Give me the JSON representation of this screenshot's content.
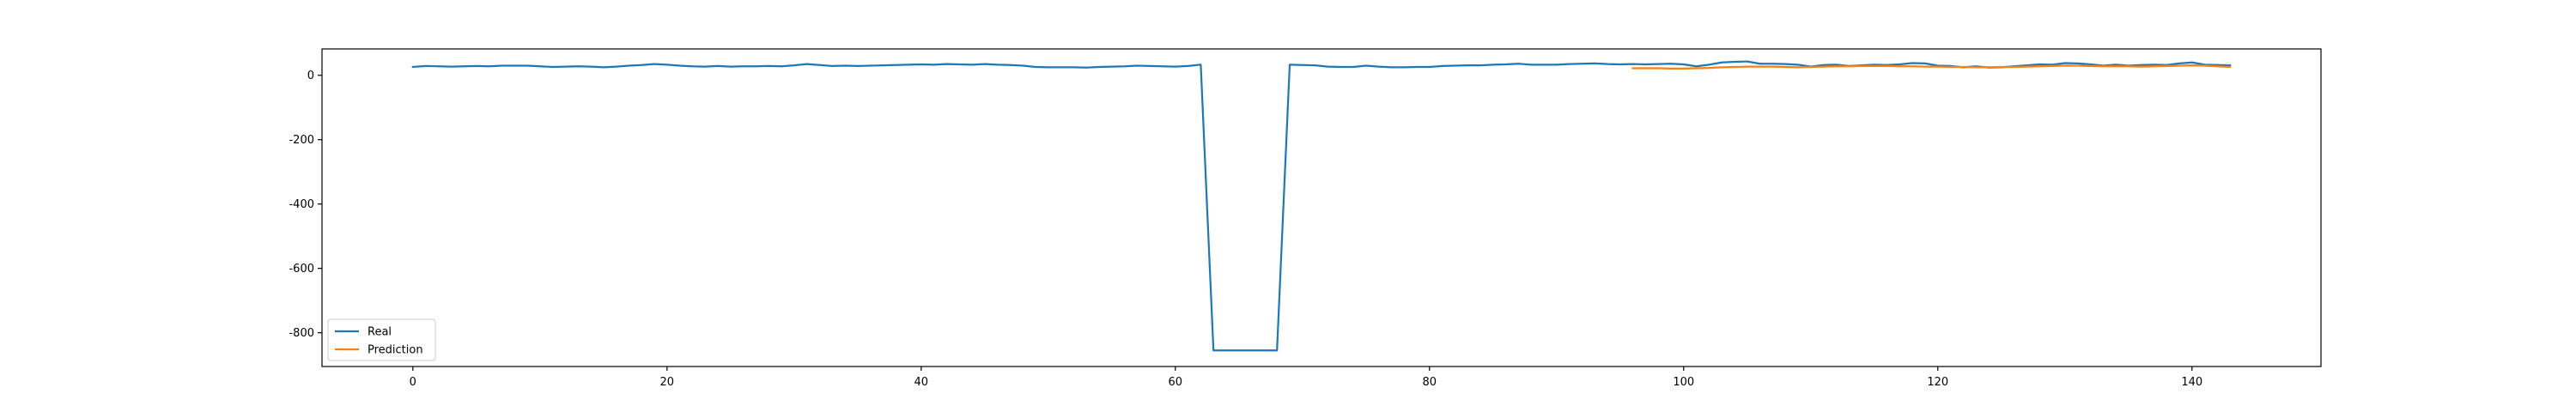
{
  "chart_data": {
    "type": "line",
    "title": "",
    "xlabel": "",
    "ylabel": "",
    "xlim": [
      -7.15,
      150.15
    ],
    "ylim": [
      -905,
      82
    ],
    "xticks": [
      0,
      20,
      40,
      60,
      80,
      100,
      120,
      140
    ],
    "yticks": [
      0,
      -200,
      -400,
      -600,
      -800
    ],
    "grid": false,
    "legend_position": "lower-left",
    "series": [
      {
        "name": "Real",
        "color": "#1f77b4",
        "x_start": 0,
        "values": [
          26,
          29,
          28,
          27,
          28,
          29,
          28,
          30,
          30,
          30,
          28,
          26,
          27,
          28,
          27,
          25,
          27,
          30,
          32,
          35,
          33,
          30,
          28,
          27,
          29,
          27,
          28,
          28,
          29,
          28,
          31,
          35,
          32,
          29,
          30,
          29,
          30,
          31,
          32,
          33,
          34,
          33,
          35,
          34,
          33,
          35,
          33,
          32,
          30,
          26,
          25,
          25,
          25,
          24,
          26,
          27,
          28,
          30,
          29,
          28,
          27,
          29,
          33,
          -855,
          -855,
          -855,
          -855,
          -855,
          -855,
          33,
          32,
          31,
          27,
          26,
          26,
          30,
          27,
          25,
          25,
          26,
          26,
          29,
          30,
          31,
          31,
          33,
          34,
          36,
          33,
          33,
          33,
          35,
          36,
          37,
          35,
          34,
          35,
          34,
          35,
          36,
          34,
          28,
          33,
          40,
          42,
          43,
          36,
          36,
          35,
          33,
          27,
          32,
          33,
          29,
          31,
          33,
          32,
          34,
          38,
          37,
          30,
          29,
          25,
          28,
          24,
          25,
          28,
          31,
          34,
          33,
          38,
          37,
          34,
          30,
          33,
          30,
          32,
          33,
          32,
          37,
          40,
          33,
          32,
          31
        ]
      },
      {
        "name": "Prediction",
        "color": "#ff7f0e",
        "x_start": 96,
        "values": [
          22,
          22,
          22,
          21,
          21,
          22,
          23,
          25,
          26,
          27,
          27,
          27,
          26,
          25,
          26,
          27,
          28,
          28,
          29,
          29,
          29,
          28,
          28,
          27,
          27,
          26,
          26,
          25,
          25,
          26,
          26,
          27,
          28,
          29,
          30,
          30,
          29,
          28,
          28,
          28,
          27,
          28,
          29,
          30,
          31,
          30,
          28,
          26
        ]
      }
    ]
  }
}
